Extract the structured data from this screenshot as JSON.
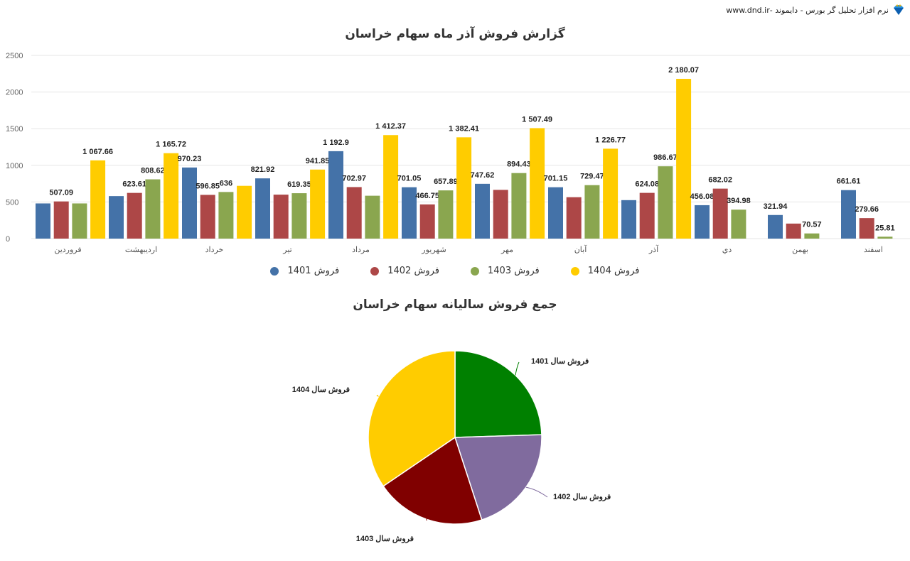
{
  "brand": {
    "text": "نرم افزار تحلیل گر بورس - دایموند -www.dnd.ir",
    "icon": "diamond-icon"
  },
  "bar_chart_title": "گزارش فروش آذر ماه سهام خراسان",
  "pie_chart_title": "جمع فروش سالیانه سهام خراسان",
  "legend": [
    {
      "label": "فروش 1401",
      "color": "#4472a8"
    },
    {
      "label": "فروش 1402",
      "color": "#ad4747"
    },
    {
      "label": "فروش 1403",
      "color": "#8aa64f"
    },
    {
      "label": "فروش 1404",
      "color": "#ffcc00"
    }
  ],
  "chart_data": [
    {
      "type": "bar",
      "title": "گزارش فروش آذر ماه سهام خراسان",
      "xlabel": "",
      "ylabel": "",
      "ylim": [
        0,
        2500
      ],
      "yticks": [
        0,
        500,
        1000,
        1500,
        2000,
        2500
      ],
      "grid": true,
      "legend_position": "bottom",
      "categories": [
        "فروردین",
        "اردیبهشت",
        "خرداد",
        "تیر",
        "مرداد",
        "شهریور",
        "مهر",
        "آبان",
        "آذر",
        "دي",
        "بهمن",
        "اسفند"
      ],
      "series": [
        {
          "name": "فروش 1401",
          "color": "#4472a8",
          "values": [
            480,
            580,
            970.23,
            821.92,
            1192.9,
            701.05,
            747.62,
            701.15,
            525,
            456.08,
            321.94,
            661.61
          ],
          "labels": [
            "",
            "",
            "970.23",
            "821.92",
            "1 192.9",
            "701.05",
            "747.62",
            "701.15",
            "",
            "456.08",
            "321.94",
            "661.61"
          ]
        },
        {
          "name": "فروش 1402",
          "color": "#ad4747",
          "values": [
            507.09,
            623.61,
            596.85,
            600,
            702.97,
            466.75,
            665,
            565,
            624.08,
            682.02,
            205,
            279.66
          ],
          "labels": [
            "507.09",
            "623.61",
            "596.85",
            "",
            "702.97",
            "466.75",
            "",
            "",
            "624.08",
            "682.02",
            "",
            "279.66"
          ]
        },
        {
          "name": "فروش 1403",
          "color": "#8aa64f",
          "values": [
            480,
            808.62,
            636,
            619.35,
            585,
            657.89,
            894.43,
            729.47,
            986.67,
            394.98,
            70.57,
            25.81
          ],
          "labels": [
            "",
            "808.62",
            "636",
            "619.35",
            "",
            "657.89",
            "894.43",
            "729.47",
            "986.67",
            "394.98",
            "70.57",
            "25.81"
          ]
        },
        {
          "name": "فروش 1404",
          "color": "#ffcc00",
          "values": [
            1067.66,
            1165.72,
            720,
            941.85,
            1412.37,
            1382.41,
            1507.49,
            1226.77,
            2180.07,
            null,
            null,
            null
          ],
          "labels": [
            "1 067.66",
            "1 165.72",
            "",
            "941.85",
            "1 412.37",
            "1 382.41",
            "1 507.49",
            "1 226.77",
            "2 180.07",
            "",
            "",
            ""
          ]
        }
      ]
    },
    {
      "type": "pie",
      "title": "جمع فروش سالیانه سهام خراسان",
      "categories": [
        "فروش سال 1401",
        "فروش سال 1402",
        "فروش سال 1403",
        "فروش سال 1404"
      ],
      "values": [
        24.5,
        20.5,
        20.5,
        34.5
      ],
      "colors": [
        "#008000",
        "#806b9e",
        "#800000",
        "#ffcc00"
      ],
      "start_angle_deg": 0,
      "direction": "clockwise"
    }
  ]
}
